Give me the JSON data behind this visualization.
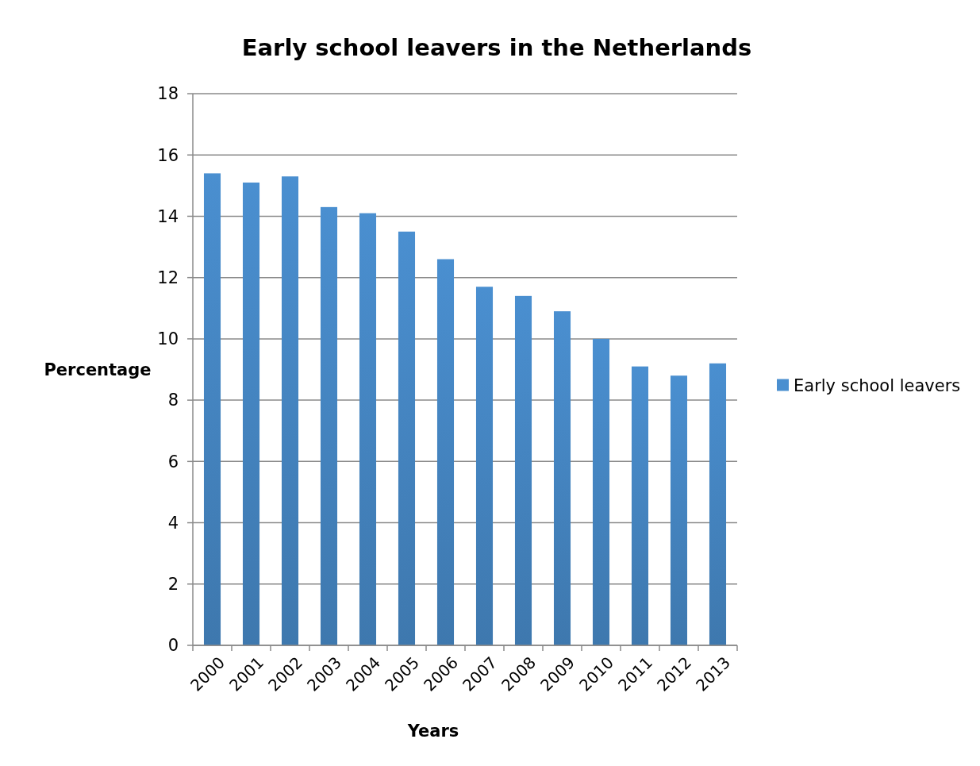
{
  "chart_data": {
    "type": "bar",
    "title": "Early school leavers in the Netherlands",
    "xlabel": "Years",
    "ylabel": "Percentage",
    "categories": [
      "2000",
      "2001",
      "2002",
      "2003",
      "2004",
      "2005",
      "2006",
      "2007",
      "2008",
      "2009",
      "2010",
      "2011",
      "2012",
      "2013"
    ],
    "series": [
      {
        "name": "Early school leavers",
        "color": "#4a8fd0",
        "values": [
          15.4,
          15.1,
          15.3,
          14.3,
          14.1,
          13.5,
          12.6,
          11.7,
          11.4,
          10.9,
          10.0,
          9.1,
          8.8,
          9.2
        ]
      }
    ],
    "ylim": [
      0,
      18
    ],
    "yticks": [
      0,
      2,
      4,
      6,
      8,
      10,
      12,
      14,
      16,
      18
    ],
    "grid": "y",
    "legend": "right"
  }
}
